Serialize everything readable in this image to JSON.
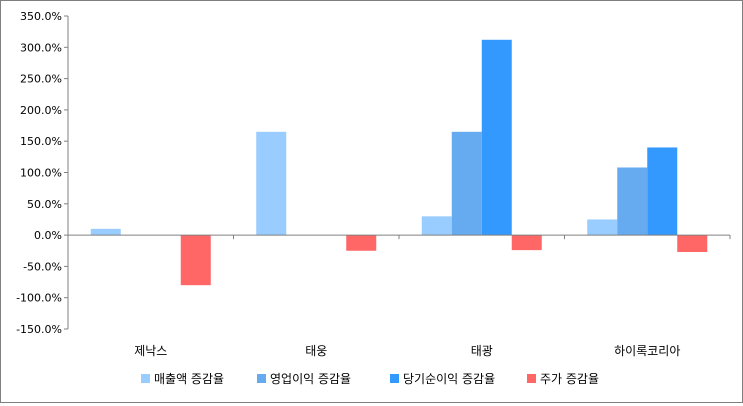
{
  "chart_data": {
    "type": "bar",
    "categories": [
      "제낙스",
      "태웅",
      "태광",
      "하이록코리아"
    ],
    "series": [
      {
        "name": "매출액 증감율",
        "color": "#99ccff",
        "values": [
          10,
          165,
          30,
          25
        ]
      },
      {
        "name": "영업이익 증감율",
        "color": "#66aaf0",
        "values": [
          0,
          0,
          165,
          108
        ]
      },
      {
        "name": "당기순이익 증감율",
        "color": "#3399ff",
        "values": [
          0,
          0,
          312,
          140
        ]
      },
      {
        "name": "주가 증감율",
        "color": "#ff6666",
        "values": [
          -80,
          -25,
          -24,
          -27
        ]
      }
    ],
    "yticks": [
      "350.0%",
      "300.0%",
      "250.0%",
      "200.0%",
      "150.0%",
      "100.0%",
      "50.0%",
      "0.0%",
      "-50.0%",
      "-100.0%",
      "-150.0%"
    ],
    "ylim": [
      -150,
      350
    ],
    "ystep": 50,
    "grid": false,
    "legend_position": "bottom",
    "title": "",
    "xlabel": "",
    "ylabel": ""
  }
}
